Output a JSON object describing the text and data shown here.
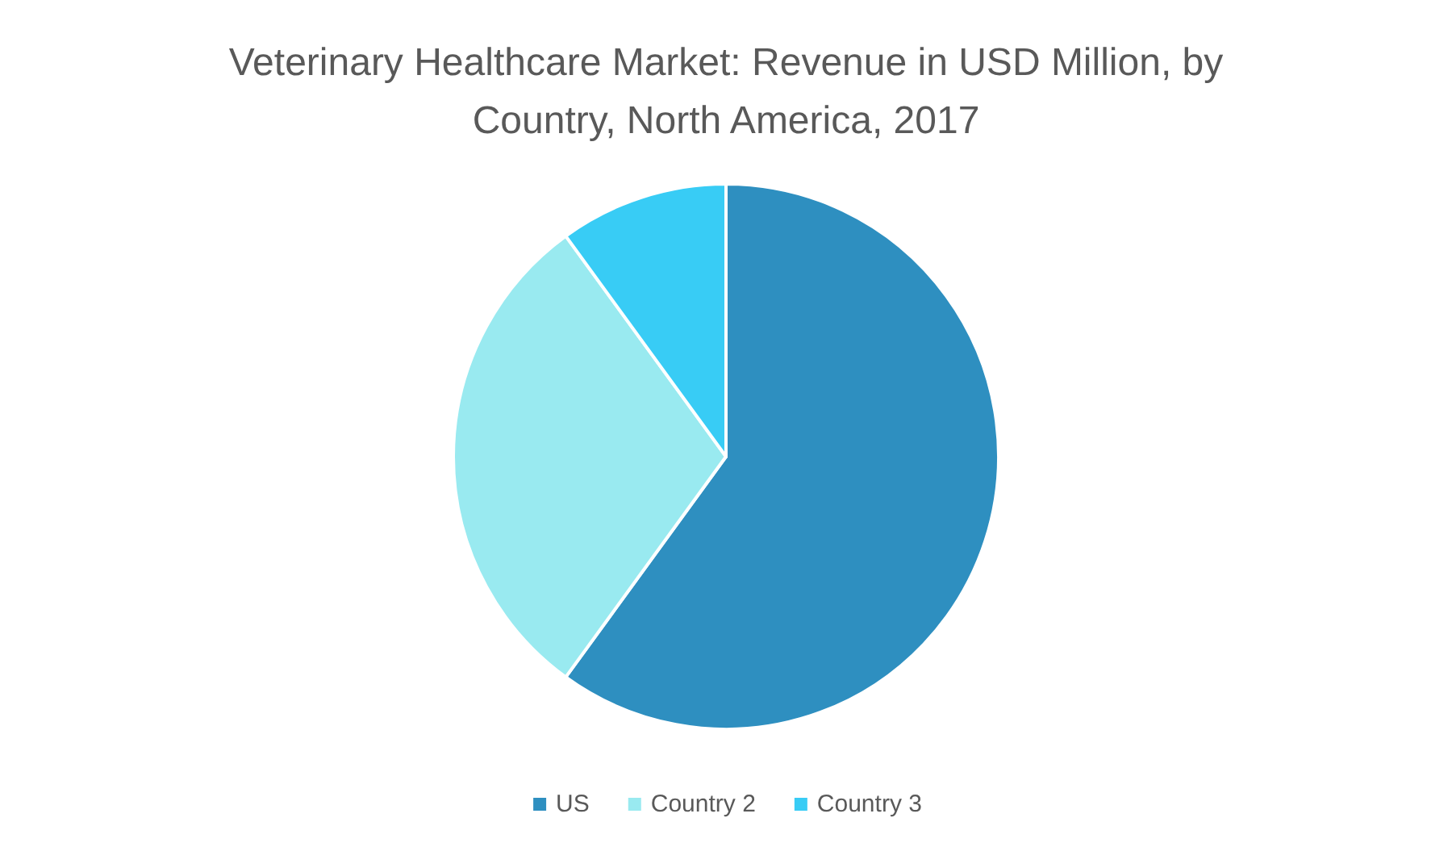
{
  "chart_data": {
    "type": "pie",
    "title": "Veterinary Healthcare Market: Revenue in USD Million, by\nCountry, North America, 2017",
    "categories": [
      "US",
      "Country 2",
      "Country 3"
    ],
    "values": [
      60,
      30,
      10
    ],
    "colors": [
      "#2e8fc0",
      "#99eaf0",
      "#38ccf5"
    ],
    "legend": "bottom"
  }
}
